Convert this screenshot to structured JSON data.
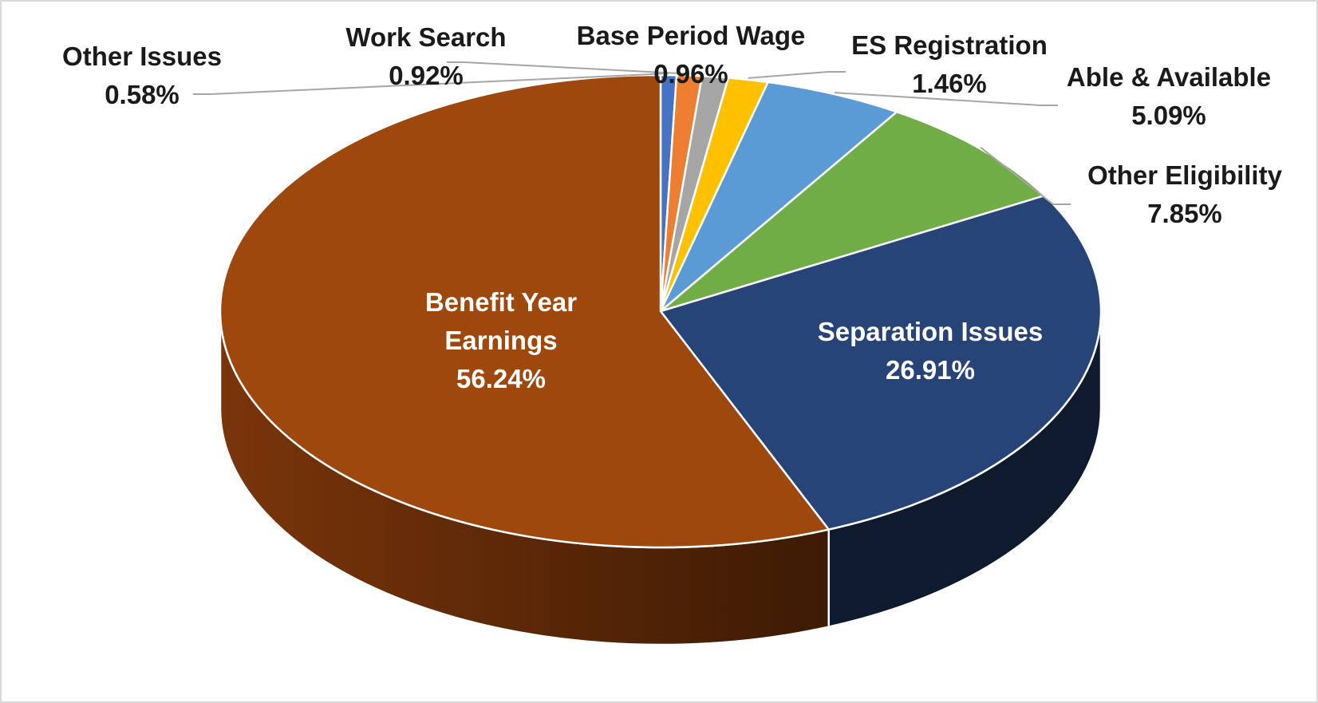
{
  "chart_data": {
    "type": "pie",
    "title": "",
    "style": "3d",
    "slices": [
      {
        "name": "Other Issues",
        "value_label": "0.58%",
        "value": 0.58,
        "color": "#4472c4"
      },
      {
        "name": "Work Search",
        "value_label": "0.92%",
        "value": 0.92,
        "color": "#ed7d31"
      },
      {
        "name": "Base Period Wage",
        "value_label": "0.96%",
        "value": 0.96,
        "color": "#a5a5a5"
      },
      {
        "name": "ES Registration",
        "value_label": "1.46%",
        "value": 1.46,
        "color": "#ffc000"
      },
      {
        "name": "Able & Available",
        "value_label": "5.09%",
        "value": 5.09,
        "color": "#5b9bd5"
      },
      {
        "name": "Other Eligibility",
        "value_label": "7.85%",
        "value": 7.85,
        "color": "#70ad47"
      },
      {
        "name": "Separation Issues",
        "value_label": "26.91%",
        "value": 26.91,
        "color": "#264478"
      },
      {
        "name": "Benefit Year Earnings",
        "name_lines": [
          "Benefit Year",
          "Earnings"
        ],
        "value_label": "56.24%",
        "value": 56.24,
        "color": "#9e480e"
      }
    ]
  }
}
